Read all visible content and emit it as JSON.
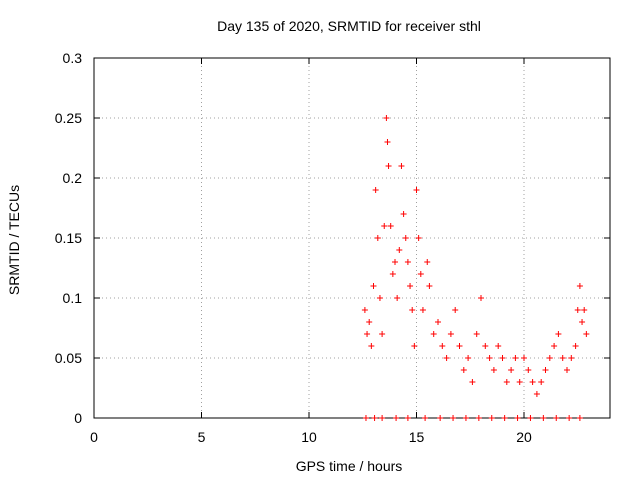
{
  "chart_data": {
    "type": "scatter",
    "title": "Day 135 of 2020, SRMTID for receiver sthl",
    "xlabel": "GPS time / hours",
    "ylabel": "SRMTID / TECUs",
    "xlim": [
      0,
      24
    ],
    "ylim": [
      0,
      0.3
    ],
    "x_ticks": [
      0,
      5,
      10,
      15,
      20
    ],
    "y_ticks": [
      0,
      0.05,
      0.1,
      0.15,
      0.2,
      0.25,
      0.3
    ],
    "x_tick_labels": [
      "0",
      "5",
      "10",
      "15",
      "20"
    ],
    "y_tick_labels": [
      "0",
      "0.05",
      "0.1",
      "0.15",
      "0.2",
      "0.25",
      "0.3"
    ],
    "grid": true,
    "marker": "+",
    "series": [
      {
        "name": "SRMTID",
        "color": "#ff0000",
        "points": [
          [
            12.6,
            0.09
          ],
          [
            12.7,
            0.07
          ],
          [
            12.8,
            0.08
          ],
          [
            12.9,
            0.06
          ],
          [
            13.0,
            0.11
          ],
          [
            13.1,
            0.19
          ],
          [
            13.2,
            0.15
          ],
          [
            13.3,
            0.1
          ],
          [
            13.4,
            0.07
          ],
          [
            13.5,
            0.16
          ],
          [
            13.6,
            0.25
          ],
          [
            13.65,
            0.23
          ],
          [
            13.7,
            0.21
          ],
          [
            13.8,
            0.16
          ],
          [
            13.9,
            0.12
          ],
          [
            14.0,
            0.13
          ],
          [
            14.1,
            0.1
          ],
          [
            14.2,
            0.14
          ],
          [
            14.3,
            0.21
          ],
          [
            14.4,
            0.17
          ],
          [
            14.5,
            0.15
          ],
          [
            14.6,
            0.13
          ],
          [
            14.7,
            0.11
          ],
          [
            14.8,
            0.09
          ],
          [
            14.9,
            0.06
          ],
          [
            15.0,
            0.19
          ],
          [
            15.1,
            0.15
          ],
          [
            15.2,
            0.12
          ],
          [
            15.3,
            0.09
          ],
          [
            15.5,
            0.13
          ],
          [
            15.6,
            0.11
          ],
          [
            15.8,
            0.07
          ],
          [
            16.0,
            0.08
          ],
          [
            16.2,
            0.06
          ],
          [
            16.4,
            0.05
          ],
          [
            16.6,
            0.07
          ],
          [
            16.8,
            0.09
          ],
          [
            17.0,
            0.06
          ],
          [
            17.2,
            0.04
          ],
          [
            17.4,
            0.05
          ],
          [
            17.6,
            0.03
          ],
          [
            17.8,
            0.07
          ],
          [
            18.0,
            0.1
          ],
          [
            18.2,
            0.06
          ],
          [
            18.4,
            0.05
          ],
          [
            18.6,
            0.04
          ],
          [
            18.8,
            0.06
          ],
          [
            19.0,
            0.05
          ],
          [
            19.2,
            0.03
          ],
          [
            19.4,
            0.04
          ],
          [
            19.6,
            0.05
          ],
          [
            19.8,
            0.03
          ],
          [
            20.0,
            0.05
          ],
          [
            20.2,
            0.04
          ],
          [
            20.4,
            0.03
          ],
          [
            20.6,
            0.02
          ],
          [
            20.8,
            0.03
          ],
          [
            21.0,
            0.04
          ],
          [
            21.2,
            0.05
          ],
          [
            21.4,
            0.06
          ],
          [
            21.6,
            0.07
          ],
          [
            21.8,
            0.05
          ],
          [
            22.0,
            0.04
          ],
          [
            22.2,
            0.05
          ],
          [
            22.4,
            0.06
          ],
          [
            22.5,
            0.09
          ],
          [
            22.6,
            0.11
          ],
          [
            22.7,
            0.08
          ],
          [
            22.8,
            0.09
          ],
          [
            22.9,
            0.07
          ],
          [
            12.65,
            0.0
          ],
          [
            13.05,
            0.0
          ],
          [
            13.4,
            0.0
          ],
          [
            14.05,
            0.0
          ],
          [
            14.6,
            0.0
          ],
          [
            15.4,
            0.0
          ],
          [
            16.1,
            0.0
          ],
          [
            16.7,
            0.0
          ],
          [
            17.3,
            0.0
          ],
          [
            17.9,
            0.0
          ],
          [
            18.5,
            0.0
          ],
          [
            19.1,
            0.0
          ],
          [
            19.7,
            0.0
          ],
          [
            20.3,
            0.0
          ],
          [
            20.9,
            0.0
          ],
          [
            21.5,
            0.0
          ],
          [
            22.1,
            0.0
          ],
          [
            22.6,
            0.0
          ]
        ]
      }
    ]
  }
}
